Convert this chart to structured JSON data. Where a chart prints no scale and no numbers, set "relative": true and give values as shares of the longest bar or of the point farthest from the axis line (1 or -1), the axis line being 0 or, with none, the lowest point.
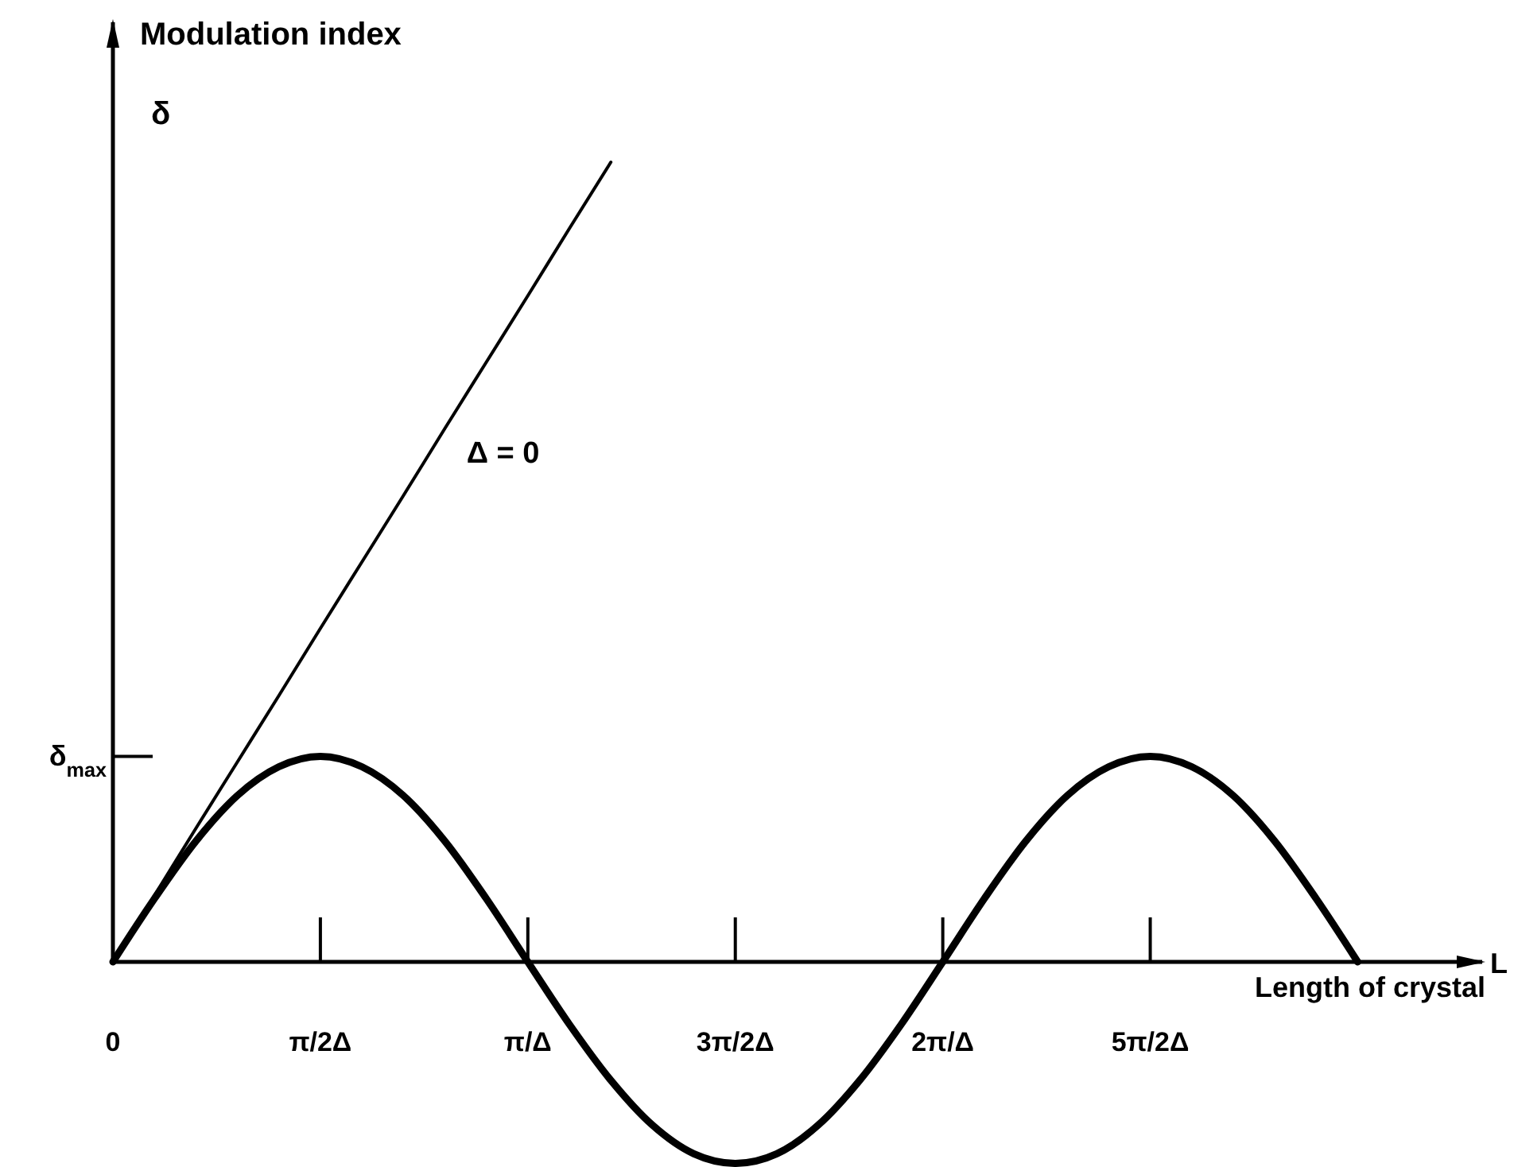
{
  "chart_data": {
    "type": "line",
    "relative": true,
    "xlabel": "Length of crystal\nL",
    "ylabel": "Modulation index\nδ",
    "categories": [
      "0",
      null,
      null,
      null,
      null,
      "π/2Δ",
      null,
      null,
      null,
      null,
      "π/Δ",
      null,
      null,
      null,
      null,
      "3π/2Δ",
      null,
      null,
      null,
      null,
      "2π/Δ",
      null,
      null,
      null,
      null,
      "5π/2Δ",
      null,
      null,
      null,
      null,
      null,
      null,
      null,
      null
    ],
    "annotations": [
      "δ$_{max}$"
    ],
    "series": [
      {
        "name": "Δ = 0",
        "color": "#000000",
        "values": [
          0,
          0.083,
          0.167,
          0.25,
          0.333,
          0.417,
          0.5,
          0.583,
          0.667,
          0.75,
          0.833,
          0.917,
          1,
          null,
          null,
          null,
          null,
          null,
          null,
          null,
          null,
          null,
          null,
          null,
          null,
          null,
          null,
          null,
          null,
          null,
          null,
          null,
          null,
          null
        ]
      },
      {
        "color": "#000000",
        "values": [
          0,
          0.079,
          0.151,
          0.208,
          0.244,
          0.257,
          0.244,
          0.208,
          0.151,
          0.079,
          0,
          -0.078,
          -0.148,
          -0.204,
          -0.24,
          -0.252,
          -0.24,
          -0.204,
          -0.148,
          -0.078,
          0,
          0.079,
          0.151,
          0.208,
          0.244,
          0.257,
          0.244,
          0.208,
          0.151,
          0.079,
          0,
          null,
          null,
          null
        ]
      }
    ]
  }
}
